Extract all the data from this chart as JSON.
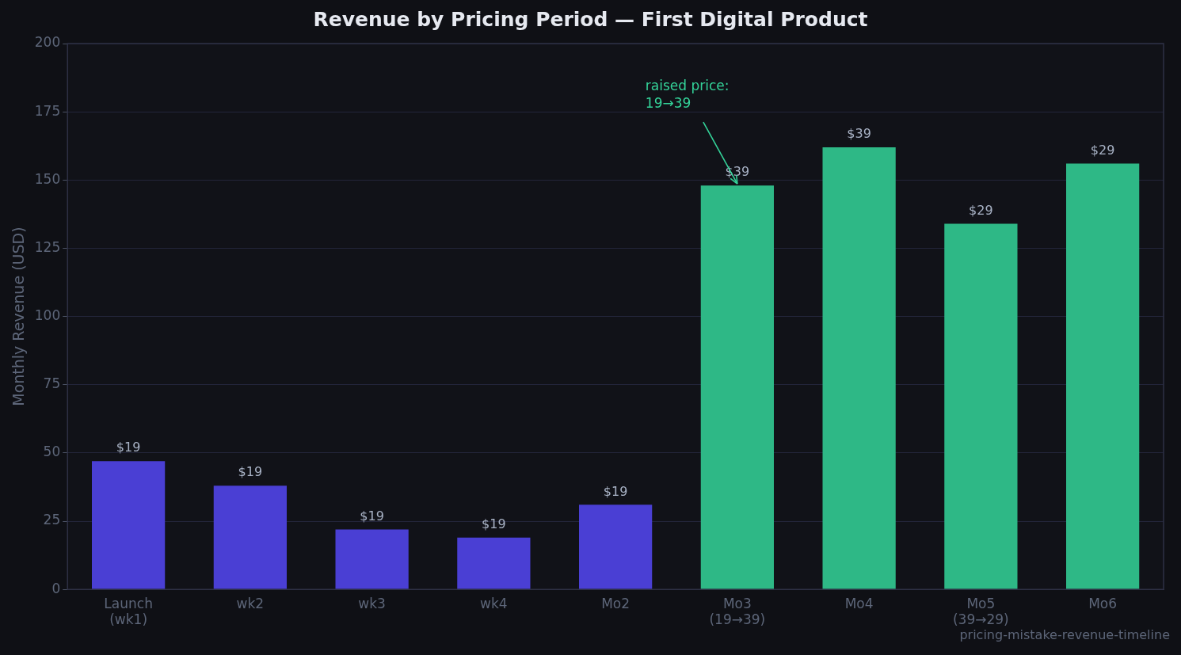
{
  "chart_data": {
    "type": "bar",
    "title": "Revenue by Pricing Period — First Digital Product",
    "ylabel": "Monthly Revenue (USD)",
    "categories": [
      "Launch\n(wk1)",
      "wk2",
      "wk3",
      "wk4",
      "Mo2",
      "Mo3\n(19→39)",
      "Mo4",
      "Mo5\n(39→29)",
      "Mo6"
    ],
    "values": [
      47,
      38,
      22,
      19,
      31,
      148,
      162,
      134,
      156
    ],
    "colors": [
      "#4a3fd4",
      "#4a3fd4",
      "#4a3fd4",
      "#4a3fd4",
      "#4a3fd4",
      "#2eb886",
      "#2eb886",
      "#2eb886",
      "#2eb886"
    ],
    "ylim": [
      0,
      200
    ],
    "yticks": [
      0,
      25,
      50,
      75,
      100,
      125,
      150,
      175,
      200
    ],
    "grid": "y",
    "annotations": [
      {
        "text": "$19",
        "x": "Launch\n(wk1)",
        "y": 47
      },
      {
        "text": "$19",
        "x": "wk2",
        "y": 38
      },
      {
        "text": "$19",
        "x": "wk3",
        "y": 22
      },
      {
        "text": "$19",
        "x": "wk4",
        "y": 19
      },
      {
        "text": "$19",
        "x": "Mo2",
        "y": 31
      },
      {
        "text": "$39",
        "x": "Mo3\n(19→39)",
        "y": 148
      },
      {
        "text": "$39",
        "x": "Mo4",
        "y": 162
      },
      {
        "text": "$29",
        "x": "Mo5\n(39→29)",
        "y": 134
      },
      {
        "text": "$29",
        "x": "Mo6",
        "y": 156
      },
      {
        "text": "raised price:\n19→39",
        "x": "Mo3\n(19→39)",
        "y": 148
      },
      "pricing-mistake-revenue-timeline"
    ]
  }
}
